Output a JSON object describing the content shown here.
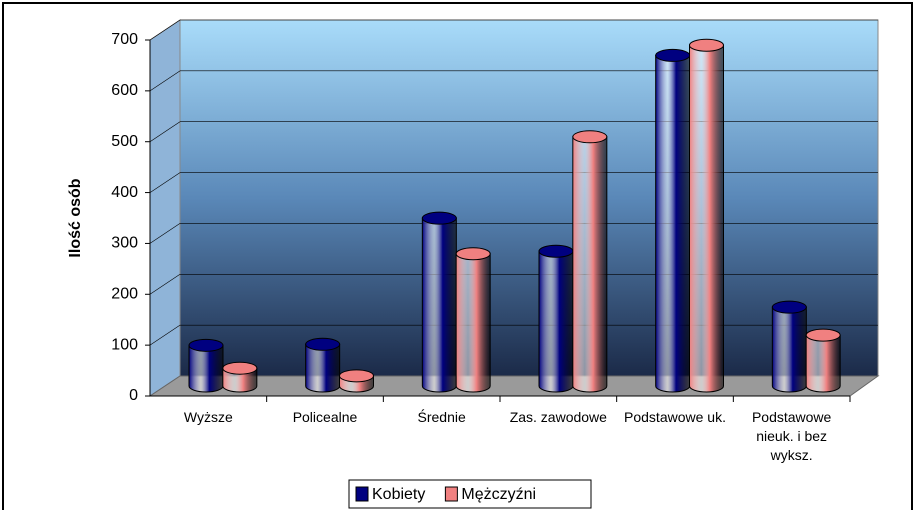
{
  "chart_data": {
    "type": "bar3d",
    "y_label": "Ilość osób",
    "categories": [
      "Wyższe",
      "Policealne",
      "Średnie",
      "Zas. zawodowe",
      "Podstawowe uk.",
      "Podstawowe nieuk. i bez wyksz."
    ],
    "series": [
      {
        "name": "Kobiety",
        "color": "#000080",
        "values": [
          80,
          82,
          330,
          265,
          650,
          155
        ]
      },
      {
        "name": "Mężczyźni",
        "color": "#f08080",
        "values": [
          35,
          20,
          260,
          490,
          670,
          100
        ]
      }
    ],
    "ylim": [
      0,
      700
    ],
    "yticks": [
      0,
      100,
      200,
      300,
      400,
      500,
      600,
      700
    ],
    "grid": true
  }
}
